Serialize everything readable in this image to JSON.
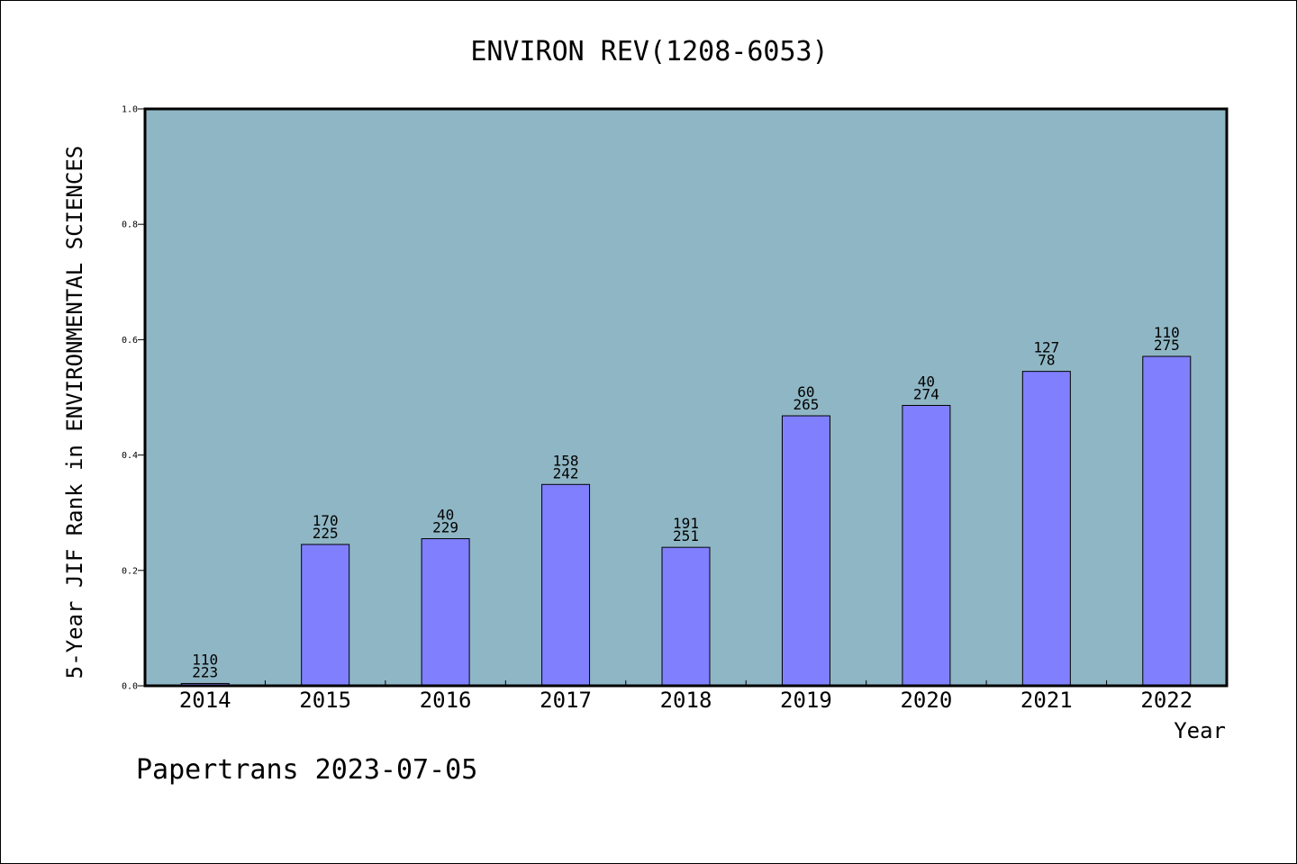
{
  "chart_data": {
    "type": "bar",
    "title": "ENVIRON REV(1208-6053)",
    "xlabel": "Year",
    "ylabel": "5-Year JIF Rank in ENVIRONMENTAL SCIENCES",
    "categories": [
      "2014",
      "2015",
      "2016",
      "2017",
      "2018",
      "2019",
      "2020",
      "2021",
      "2022"
    ],
    "values": [
      0.004,
      0.245,
      0.255,
      0.349,
      0.24,
      0.468,
      0.486,
      0.545,
      0.571
    ],
    "bar_labels_top": [
      "110",
      "170",
      "40",
      "158",
      "191",
      "60",
      "40",
      "127",
      "110"
    ],
    "bar_labels_bottom": [
      "223",
      "225",
      "229",
      "242",
      "251",
      "265",
      "274",
      "78",
      "275"
    ],
    "ylim": [
      0,
      1.0
    ],
    "yticks": [
      "0.0",
      "0.2",
      "0.4",
      "0.6",
      "0.8",
      "1.0"
    ],
    "grid": false,
    "legend": "none",
    "colors": {
      "plot_background": "#8fb6c4",
      "bar_fill": "#8080ff",
      "bar_stroke": "#000000",
      "axis": "#000000"
    }
  },
  "footer": {
    "text": "Papertrans 2023-07-05"
  }
}
